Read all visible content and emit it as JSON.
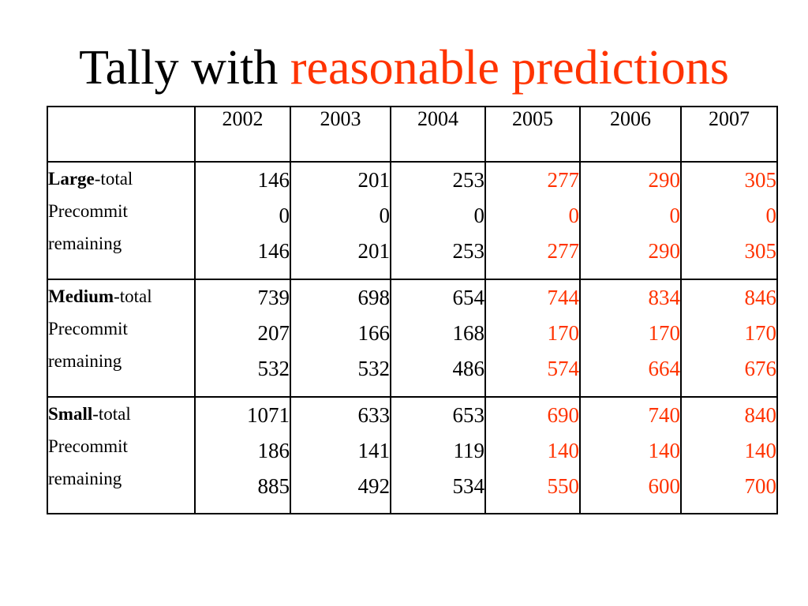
{
  "title": {
    "main": "Tally with",
    "accent": "reasonable predictions"
  },
  "table": {
    "corner": "",
    "years": [
      "2002",
      "2003",
      "2004",
      "2005",
      "2006",
      "2007"
    ],
    "predicted_color": "#ff3300",
    "rows": [
      {
        "category": "Large",
        "labels": [
          "-total",
          "Precommit",
          "remaining"
        ],
        "values": [
          [
            "146",
            "0",
            "146"
          ],
          [
            "201",
            "0",
            "201"
          ],
          [
            "253",
            "0",
            "253"
          ],
          [
            "277",
            "0",
            "277"
          ],
          [
            "290",
            "0",
            "290"
          ],
          [
            "305",
            "0",
            "305"
          ]
        ]
      },
      {
        "category": "Medium",
        "labels": [
          "-total",
          "Precommit",
          "remaining"
        ],
        "values": [
          [
            "739",
            "207",
            "532"
          ],
          [
            "698",
            "166",
            "532"
          ],
          [
            "654",
            "168",
            "486"
          ],
          [
            "744",
            "170",
            "574"
          ],
          [
            "834",
            "170",
            "664"
          ],
          [
            "846",
            "170",
            "676"
          ]
        ]
      },
      {
        "category": "Small",
        "labels": [
          "-total",
          "Precommit",
          "remaining"
        ],
        "values": [
          [
            "1071",
            "186",
            "885"
          ],
          [
            "633",
            "141",
            "492"
          ],
          [
            "653",
            "119",
            "534"
          ],
          [
            "690",
            "140",
            "550"
          ],
          [
            "740",
            "140",
            "600"
          ],
          [
            "840",
            "140",
            "700"
          ]
        ]
      }
    ]
  }
}
